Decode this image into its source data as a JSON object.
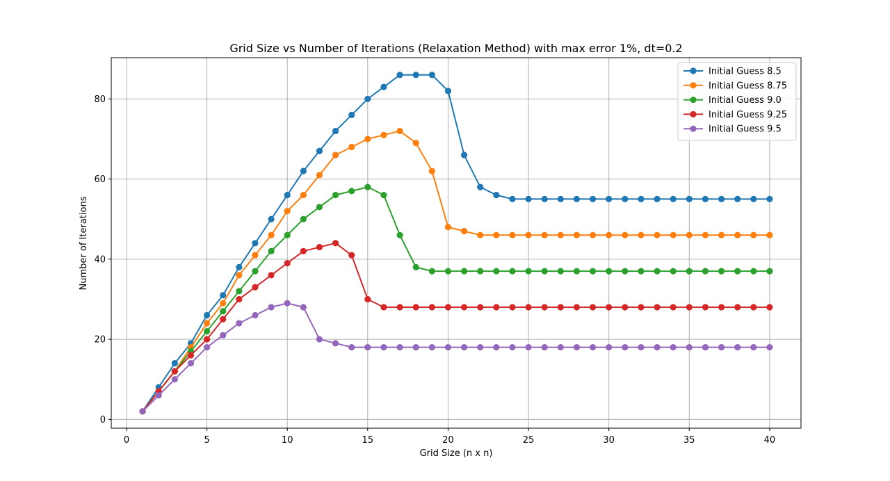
{
  "chart_data": {
    "type": "line",
    "title": "Grid Size vs Number of Iterations (Relaxation Method) with max error 1%, dt=0.2",
    "xlabel": "Grid Size (n x n)",
    "ylabel": "Number of Iterations",
    "xlim": [
      -0.95,
      41.95
    ],
    "ylim": [
      -2.2,
      90.3
    ],
    "xticks": [
      0,
      5,
      10,
      15,
      20,
      25,
      30,
      35,
      40
    ],
    "yticks": [
      0,
      20,
      40,
      60,
      80
    ],
    "grid": true,
    "legend_position": "top-right",
    "marker": "circle",
    "x": [
      1,
      2,
      3,
      4,
      5,
      6,
      7,
      8,
      9,
      10,
      11,
      12,
      13,
      14,
      15,
      16,
      17,
      18,
      19,
      20,
      21,
      22,
      23,
      24,
      25,
      26,
      27,
      28,
      29,
      30,
      31,
      32,
      33,
      34,
      35,
      36,
      37,
      38,
      39,
      40
    ],
    "series": [
      {
        "name": "Initial Guess 8.5",
        "color": "#1f77b4",
        "values": [
          2,
          8,
          14,
          19,
          26,
          31,
          38,
          44,
          50,
          56,
          62,
          67,
          72,
          76,
          80,
          83,
          86,
          86,
          86,
          82,
          66,
          58,
          56,
          55,
          55,
          55,
          55,
          55,
          55,
          55,
          55,
          55,
          55,
          55,
          55,
          55,
          55,
          55,
          55,
          55
        ]
      },
      {
        "name": "Initial Guess 8.75",
        "color": "#ff7f0e",
        "values": [
          2,
          7,
          12,
          18,
          24,
          29,
          36,
          41,
          46,
          52,
          56,
          61,
          66,
          68,
          70,
          71,
          72,
          69,
          62,
          48,
          47,
          46,
          46,
          46,
          46,
          46,
          46,
          46,
          46,
          46,
          46,
          46,
          46,
          46,
          46,
          46,
          46,
          46,
          46,
          46
        ]
      },
      {
        "name": "Initial Guess 9.0",
        "color": "#2ca02c",
        "values": [
          2,
          7,
          12,
          17,
          22,
          27,
          32,
          37,
          42,
          46,
          50,
          53,
          56,
          57,
          58,
          56,
          46,
          38,
          37,
          37,
          37,
          37,
          37,
          37,
          37,
          37,
          37,
          37,
          37,
          37,
          37,
          37,
          37,
          37,
          37,
          37,
          37,
          37,
          37,
          37
        ]
      },
      {
        "name": "Initial Guess 9.25",
        "color": "#d62728",
        "values": [
          2,
          7,
          12,
          16,
          20,
          25,
          30,
          33,
          36,
          39,
          42,
          43,
          44,
          41,
          30,
          28,
          28,
          28,
          28,
          28,
          28,
          28,
          28,
          28,
          28,
          28,
          28,
          28,
          28,
          28,
          28,
          28,
          28,
          28,
          28,
          28,
          28,
          28,
          28,
          28
        ]
      },
      {
        "name": "Initial Guess 9.5",
        "color": "#9467bd",
        "values": [
          2,
          6,
          10,
          14,
          18,
          21,
          24,
          26,
          28,
          29,
          28,
          20,
          19,
          18,
          18,
          18,
          18,
          18,
          18,
          18,
          18,
          18,
          18,
          18,
          18,
          18,
          18,
          18,
          18,
          18,
          18,
          18,
          18,
          18,
          18,
          18,
          18,
          18,
          18,
          18
        ]
      }
    ]
  }
}
